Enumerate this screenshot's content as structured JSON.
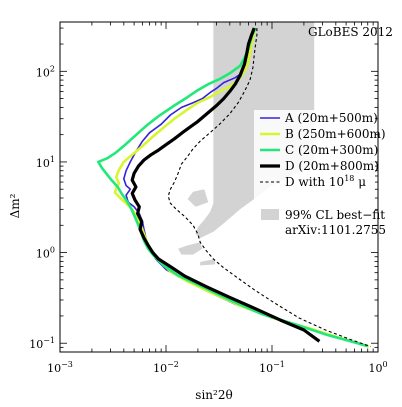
{
  "chart_data": {
    "type": "line",
    "banner": "GLoBES 2012",
    "xlabel": "sin²2θ",
    "ylabel": "Δm²",
    "xscale": "log",
    "yscale": "log",
    "xlim": [
      0.001,
      1.0
    ],
    "ylim": [
      0.08,
      350
    ],
    "grid": false,
    "legend_position": "right",
    "x_ticks": [
      {
        "value": 0.001,
        "base": "10",
        "exp": "−3"
      },
      {
        "value": 0.01,
        "base": "10",
        "exp": "−2"
      },
      {
        "value": 0.1,
        "base": "10",
        "exp": "−1"
      },
      {
        "value": 1,
        "base": "10",
        "exp": "0"
      }
    ],
    "y_ticks": [
      {
        "value": 0.1,
        "base": "10",
        "exp": "−1"
      },
      {
        "value": 1,
        "base": "10",
        "exp": "0"
      },
      {
        "value": 10,
        "base": "10",
        "exp": "1"
      },
      {
        "value": 100,
        "base": "10",
        "exp": "2"
      }
    ],
    "series": [
      {
        "name": "A (20m+500m)",
        "color": "#3322dd",
        "width": 1.6,
        "dash": "",
        "points": [
          [
            0.07,
            300
          ],
          [
            0.065,
            250
          ],
          [
            0.062,
            180
          ],
          [
            0.06,
            130
          ],
          [
            0.055,
            100
          ],
          [
            0.045,
            85
          ],
          [
            0.035,
            75
          ],
          [
            0.03,
            65
          ],
          [
            0.027,
            60
          ],
          [
            0.022,
            50
          ],
          [
            0.018,
            45
          ],
          [
            0.014,
            40
          ],
          [
            0.011,
            33
          ],
          [
            0.009,
            26
          ],
          [
            0.007,
            21
          ],
          [
            0.006,
            17
          ],
          [
            0.0052,
            13
          ],
          [
            0.0046,
            10
          ],
          [
            0.0042,
            8
          ],
          [
            0.004,
            6.5
          ],
          [
            0.0042,
            5.5
          ],
          [
            0.0046,
            5
          ],
          [
            0.0042,
            4.3
          ],
          [
            0.0044,
            3.6
          ],
          [
            0.005,
            3.2
          ],
          [
            0.0056,
            2.7
          ],
          [
            0.006,
            2.2
          ],
          [
            0.0062,
            1.8
          ],
          [
            0.0065,
            1.4
          ],
          [
            0.007,
            1.1
          ],
          [
            0.008,
            0.85
          ],
          [
            0.01,
            0.65
          ],
          [
            0.015,
            0.5
          ],
          [
            0.025,
            0.37
          ],
          [
            0.045,
            0.27
          ],
          [
            0.1,
            0.19
          ],
          [
            0.2,
            0.15
          ],
          [
            0.35,
            0.12
          ],
          [
            0.55,
            0.105
          ],
          [
            0.8,
            0.092
          ]
        ]
      },
      {
        "name": "B (250m+600m)",
        "color": "#d8f530",
        "width": 2.6,
        "dash": "",
        "points": [
          [
            0.07,
            300
          ],
          [
            0.067,
            250
          ],
          [
            0.063,
            180
          ],
          [
            0.06,
            130
          ],
          [
            0.055,
            100
          ],
          [
            0.048,
            80
          ],
          [
            0.04,
            68
          ],
          [
            0.032,
            60
          ],
          [
            0.026,
            52
          ],
          [
            0.02,
            45
          ],
          [
            0.016,
            38
          ],
          [
            0.012,
            30
          ],
          [
            0.0095,
            24
          ],
          [
            0.0075,
            19
          ],
          [
            0.006,
            15
          ],
          [
            0.0048,
            12
          ],
          [
            0.004,
            10
          ],
          [
            0.0036,
            8.2
          ],
          [
            0.0034,
            6.8
          ],
          [
            0.0036,
            5.8
          ],
          [
            0.0034,
            5.2
          ],
          [
            0.0033,
            4.6
          ],
          [
            0.0037,
            4
          ],
          [
            0.0042,
            3.5
          ],
          [
            0.0048,
            3
          ],
          [
            0.0053,
            2.5
          ],
          [
            0.0058,
            2
          ],
          [
            0.0062,
            1.6
          ],
          [
            0.0067,
            1.25
          ],
          [
            0.0075,
            1
          ],
          [
            0.0088,
            0.8
          ],
          [
            0.011,
            0.62
          ],
          [
            0.016,
            0.48
          ],
          [
            0.027,
            0.36
          ],
          [
            0.05,
            0.26
          ],
          [
            0.11,
            0.185
          ],
          [
            0.23,
            0.145
          ],
          [
            0.4,
            0.118
          ],
          [
            0.6,
            0.103
          ],
          [
            0.82,
            0.092
          ]
        ]
      },
      {
        "name": "C (20m+300m)",
        "color": "#22e87a",
        "width": 2.6,
        "dash": "",
        "points": [
          [
            0.07,
            300
          ],
          [
            0.065,
            250
          ],
          [
            0.06,
            180
          ],
          [
            0.055,
            140
          ],
          [
            0.05,
            115
          ],
          [
            0.04,
            95
          ],
          [
            0.032,
            82
          ],
          [
            0.025,
            72
          ],
          [
            0.02,
            62
          ],
          [
            0.016,
            52
          ],
          [
            0.012,
            42
          ],
          [
            0.0085,
            32
          ],
          [
            0.0065,
            25
          ],
          [
            0.005,
            19
          ],
          [
            0.004,
            15
          ],
          [
            0.0033,
            12.5
          ],
          [
            0.0028,
            11
          ],
          [
            0.0023,
            10
          ],
          [
            0.0025,
            8.5
          ],
          [
            0.0028,
            7.2
          ],
          [
            0.0031,
            6.2
          ],
          [
            0.0035,
            5.3
          ],
          [
            0.0038,
            4.5
          ],
          [
            0.0042,
            3.8
          ],
          [
            0.0046,
            3.2
          ],
          [
            0.005,
            2.6
          ],
          [
            0.0054,
            2.1
          ],
          [
            0.0058,
            1.7
          ],
          [
            0.0062,
            1.35
          ],
          [
            0.0068,
            1.1
          ],
          [
            0.0078,
            0.9
          ],
          [
            0.0095,
            0.72
          ],
          [
            0.013,
            0.56
          ],
          [
            0.022,
            0.42
          ],
          [
            0.04,
            0.3
          ],
          [
            0.08,
            0.21
          ],
          [
            0.17,
            0.16
          ],
          [
            0.32,
            0.125
          ],
          [
            0.55,
            0.105
          ],
          [
            0.8,
            0.093
          ]
        ]
      },
      {
        "name": "D (20m+800m)",
        "color": "#000000",
        "width": 3.2,
        "dash": "",
        "points": [
          [
            0.068,
            300
          ],
          [
            0.064,
            250
          ],
          [
            0.06,
            200
          ],
          [
            0.058,
            160
          ],
          [
            0.055,
            120
          ],
          [
            0.05,
            90
          ],
          [
            0.045,
            72
          ],
          [
            0.04,
            60
          ],
          [
            0.035,
            50
          ],
          [
            0.03,
            42
          ],
          [
            0.025,
            35
          ],
          [
            0.02,
            28
          ],
          [
            0.015,
            22
          ],
          [
            0.012,
            18
          ],
          [
            0.01,
            15.5
          ],
          [
            0.0085,
            13.5
          ],
          [
            0.0072,
            12
          ],
          [
            0.0062,
            10.5
          ],
          [
            0.0055,
            9
          ],
          [
            0.005,
            7.5
          ],
          [
            0.0048,
            6.3
          ],
          [
            0.0052,
            5.3
          ],
          [
            0.0048,
            4.5
          ],
          [
            0.0051,
            3.8
          ],
          [
            0.0056,
            3.2
          ],
          [
            0.0054,
            2.7
          ],
          [
            0.0059,
            2.2
          ],
          [
            0.0057,
            1.8
          ],
          [
            0.0062,
            1.45
          ],
          [
            0.0068,
            1.2
          ],
          [
            0.0075,
            1
          ],
          [
            0.0085,
            0.85
          ],
          [
            0.011,
            0.7
          ],
          [
            0.015,
            0.55
          ],
          [
            0.024,
            0.42
          ],
          [
            0.04,
            0.32
          ],
          [
            0.07,
            0.24
          ],
          [
            0.12,
            0.18
          ],
          [
            0.2,
            0.14
          ],
          [
            0.28,
            0.105
          ]
        ]
      },
      {
        "name": "D with 10¹⁸ μ",
        "label_main": "D with 10",
        "label_sup": "18",
        "label_tail": " μ",
        "color": "#000000",
        "width": 1.1,
        "dash": "3,2.5",
        "points": [
          [
            0.072,
            300
          ],
          [
            0.072,
            250
          ],
          [
            0.07,
            200
          ],
          [
            0.068,
            150
          ],
          [
            0.066,
            110
          ],
          [
            0.062,
            80
          ],
          [
            0.055,
            60
          ],
          [
            0.048,
            45
          ],
          [
            0.04,
            34
          ],
          [
            0.032,
            26
          ],
          [
            0.026,
            21
          ],
          [
            0.021,
            17
          ],
          [
            0.018,
            14
          ],
          [
            0.016,
            11.5
          ],
          [
            0.014,
            9.5
          ],
          [
            0.013,
            7.5
          ],
          [
            0.012,
            6
          ],
          [
            0.011,
            5
          ],
          [
            0.0105,
            4.2
          ],
          [
            0.011,
            3.5
          ],
          [
            0.0125,
            3
          ],
          [
            0.015,
            2.5
          ],
          [
            0.018,
            2
          ],
          [
            0.02,
            1.6
          ],
          [
            0.021,
            1.3
          ],
          [
            0.024,
            1.05
          ],
          [
            0.028,
            0.85
          ],
          [
            0.035,
            0.68
          ],
          [
            0.048,
            0.52
          ],
          [
            0.07,
            0.38
          ],
          [
            0.11,
            0.27
          ],
          [
            0.18,
            0.19
          ],
          [
            0.32,
            0.14
          ],
          [
            0.55,
            0.11
          ],
          [
            0.85,
            0.092
          ]
        ]
      }
    ],
    "best_fit_region": {
      "name": "99% CL best−fit",
      "name_line2": "arXiv:1101.2755",
      "color": "#d3d3d3",
      "polygons": [
        [
          [
            0.028,
            350
          ],
          [
            0.25,
            350
          ],
          [
            0.25,
            9
          ],
          [
            0.15,
            7
          ],
          [
            0.1,
            5.5
          ],
          [
            0.07,
            4
          ],
          [
            0.05,
            3
          ],
          [
            0.035,
            2.1
          ],
          [
            0.028,
            1.7
          ],
          [
            0.021,
            1.45
          ],
          [
            0.019,
            1.6
          ],
          [
            0.02,
            1.9
          ],
          [
            0.023,
            2.3
          ],
          [
            0.026,
            2.8
          ],
          [
            0.028,
            3.5
          ],
          [
            0.028,
            6
          ]
        ],
        [
          [
            0.025,
            3.6
          ],
          [
            0.019,
            3.2
          ],
          [
            0.016,
            3.9
          ],
          [
            0.018,
            4.7
          ],
          [
            0.023,
            5
          ]
        ],
        [
          [
            0.021,
            1.3
          ],
          [
            0.016,
            1.2
          ],
          [
            0.013,
            1.1
          ],
          [
            0.014,
            0.95
          ],
          [
            0.018,
            0.95
          ],
          [
            0.022,
            1.1
          ]
        ],
        [
          [
            0.029,
            0.85
          ],
          [
            0.021,
            0.79
          ],
          [
            0.021,
            0.72
          ],
          [
            0.029,
            0.74
          ]
        ]
      ]
    }
  }
}
